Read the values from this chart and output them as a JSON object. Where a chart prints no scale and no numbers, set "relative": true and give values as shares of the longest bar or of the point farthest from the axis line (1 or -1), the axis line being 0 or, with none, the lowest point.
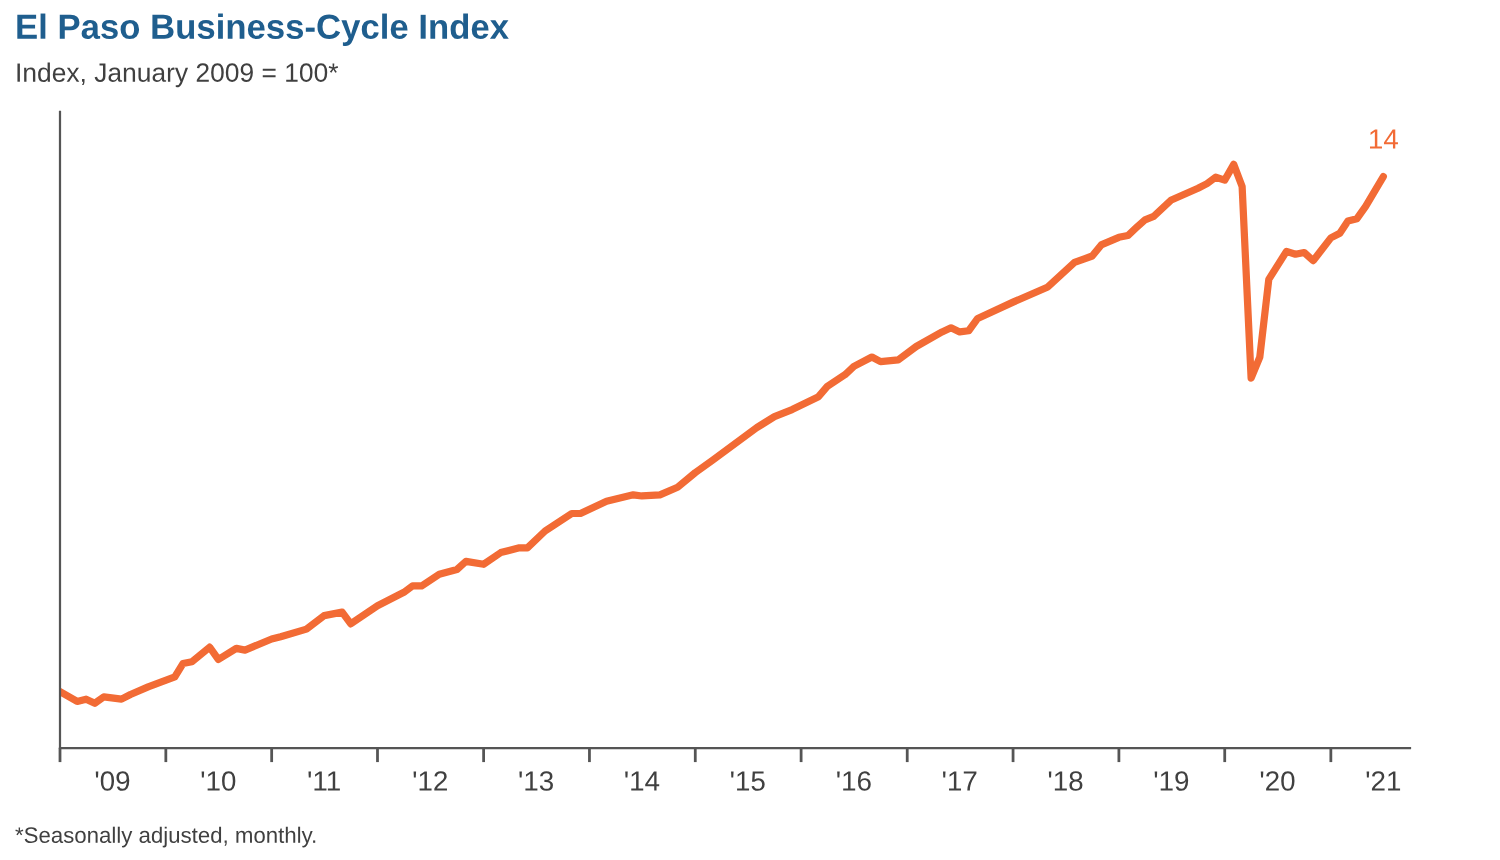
{
  "chart_data": {
    "type": "line",
    "title": "El Paso Business-Cycle Index",
    "subtitle": "Index, January 2009 = 100*",
    "relative": true,
    "annotations": [
      "*Seasonally adjusted, monthly.",
      {
        "text": "14",
        "x": "2021-07",
        "y": 0.979
      }
    ],
    "xlim": [
      "2009-01",
      "2021-10"
    ],
    "xticks": [
      {
        "value": "2009-01",
        "label": null
      },
      {
        "value": "2009-07",
        "label": "'09"
      },
      {
        "value": "2010-01",
        "label": null
      },
      {
        "value": "2010-07",
        "label": "'10"
      },
      {
        "value": "2011-01",
        "label": null
      },
      {
        "value": "2011-07",
        "label": "'11"
      },
      {
        "value": "2012-01",
        "label": null
      },
      {
        "value": "2012-07",
        "label": "'12"
      },
      {
        "value": "2013-01",
        "label": null
      },
      {
        "value": "2013-07",
        "label": "'13"
      },
      {
        "value": "2014-01",
        "label": null
      },
      {
        "value": "2014-07",
        "label": "'14"
      },
      {
        "value": "2015-01",
        "label": null
      },
      {
        "value": "2015-07",
        "label": "'15"
      },
      {
        "value": "2016-01",
        "label": null
      },
      {
        "value": "2016-07",
        "label": "'16"
      },
      {
        "value": "2017-01",
        "label": null
      },
      {
        "value": "2017-07",
        "label": "'17"
      },
      {
        "value": "2018-01",
        "label": null
      },
      {
        "value": "2018-07",
        "label": "'18"
      },
      {
        "value": "2019-01",
        "label": null
      },
      {
        "value": "2019-07",
        "label": "'19"
      },
      {
        "value": "2020-01",
        "label": null
      },
      {
        "value": "2020-07",
        "label": "'20"
      },
      {
        "value": "2021-01",
        "label": null
      },
      {
        "value": "2021-07",
        "label": "'21"
      }
    ],
    "x": [
      "2009-01",
      "2009-03",
      "2009-04",
      "2009-05",
      "2009-06",
      "2009-08",
      "2009-09",
      "2009-11",
      "2010-02",
      "2010-03",
      "2010-04",
      "2010-06",
      "2010-07",
      "2010-09",
      "2010-10",
      "2011-01",
      "2011-02",
      "2011-05",
      "2011-07",
      "2011-09",
      "2011-10",
      "2012-01",
      "2012-04",
      "2012-05",
      "2012-06",
      "2012-08",
      "2012-10",
      "2012-11",
      "2013-01",
      "2013-03",
      "2013-05",
      "2013-06",
      "2013-08",
      "2013-11",
      "2013-12",
      "2014-03",
      "2014-06",
      "2014-07",
      "2014-09",
      "2014-11",
      "2015-01",
      "2015-03",
      "2015-08",
      "2015-10",
      "2015-12",
      "2016-03",
      "2016-04",
      "2016-06",
      "2016-07",
      "2016-09",
      "2016-10",
      "2016-12",
      "2017-02",
      "2017-05",
      "2017-06",
      "2017-07",
      "2017-08",
      "2017-09",
      "2018-01",
      "2018-05",
      "2018-08",
      "2018-10",
      "2018-11",
      "2019-01",
      "2019-02",
      "2019-03",
      "2019-04",
      "2019-05",
      "2019-07",
      "2019-10",
      "2019-11",
      "2019-12",
      "2020-01",
      "2020-02",
      "2020-03",
      "2020-04",
      "2020-05",
      "2020-06",
      "2020-08",
      "2020-09",
      "2020-10",
      "2020-11",
      "2020-12",
      "2021-01",
      "2021-02",
      "2021-03",
      "2021-04",
      "2021-05",
      "2021-07"
    ],
    "series": [
      {
        "color": "#f26b35",
        "values": [
          0.097,
          0.08,
          0.084,
          0.077,
          0.088,
          0.084,
          0.092,
          0.105,
          0.122,
          0.145,
          0.148,
          0.173,
          0.152,
          0.171,
          0.168,
          0.187,
          0.191,
          0.204,
          0.227,
          0.233,
          0.213,
          0.244,
          0.267,
          0.278,
          0.278,
          0.298,
          0.306,
          0.32,
          0.315,
          0.335,
          0.343,
          0.343,
          0.372,
          0.402,
          0.402,
          0.423,
          0.434,
          0.432,
          0.434,
          0.447,
          0.472,
          0.493,
          0.549,
          0.568,
          0.58,
          0.602,
          0.62,
          0.64,
          0.654,
          0.67,
          0.662,
          0.665,
          0.688,
          0.713,
          0.72,
          0.713,
          0.715,
          0.736,
          0.764,
          0.79,
          0.832,
          0.843,
          0.862,
          0.875,
          0.878,
          0.891,
          0.905,
          0.911,
          0.939,
          0.959,
          0.967,
          0.978,
          0.973,
          1,
          0.962,
          0.634,
          0.67,
          0.803,
          0.851,
          0.846,
          0.849,
          0.835,
          0.854,
          0.874,
          0.882,
          0.903,
          0.907,
          0.928,
          0.979
        ]
      }
    ],
    "marker": "none",
    "line_style": "solid"
  }
}
